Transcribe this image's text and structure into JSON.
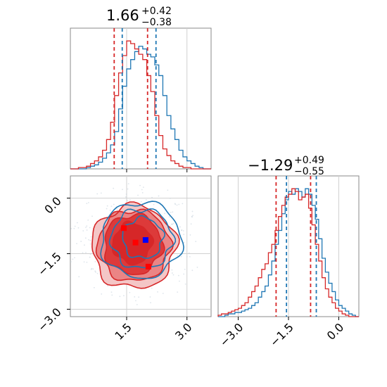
{
  "chart_data": [
    {
      "type": "histogram",
      "panel": "top-left",
      "title": {
        "median": "1.66",
        "upper": "+0.42",
        "lower": "−0.38"
      },
      "xlim": [
        0.1,
        3.6
      ],
      "grid": true,
      "bins_x": [
        0.1,
        0.2,
        0.3,
        0.4,
        0.5,
        0.6,
        0.7,
        0.8,
        0.9,
        1.0,
        1.1,
        1.2,
        1.3,
        1.4,
        1.5,
        1.6,
        1.7,
        1.8,
        1.9,
        2.0,
        2.1,
        2.2,
        2.3,
        2.4,
        2.5,
        2.6,
        2.7,
        2.8,
        2.9,
        3.0,
        3.1,
        3.2,
        3.3,
        3.4,
        3.5,
        3.6
      ],
      "series": [
        {
          "color": "#1f77b4",
          "values": [
            0,
            0,
            0,
            0,
            1,
            2,
            3,
            5,
            8,
            12,
            18,
            28,
            45,
            62,
            75,
            82,
            88,
            92,
            90,
            86,
            84,
            78,
            70,
            55,
            40,
            30,
            22,
            14,
            9,
            6,
            4,
            2,
            1,
            0,
            0
          ],
          "quantiles": [
            1.39,
            2.23
          ]
        },
        {
          "color": "#d62728",
          "values": [
            0,
            0,
            1,
            1,
            2,
            4,
            6,
            9,
            14,
            22,
            35,
            55,
            72,
            85,
            96,
            94,
            90,
            86,
            82,
            70,
            58,
            40,
            25,
            15,
            10,
            6,
            4,
            2,
            1,
            1,
            0,
            0,
            0,
            0,
            0
          ],
          "quantiles": [
            1.19,
            2.02
          ]
        }
      ]
    },
    {
      "type": "histogram",
      "panel": "bottom-right",
      "title": {
        "median": "−1.29",
        "upper": "+0.49",
        "lower": "−0.55"
      },
      "xlim": [
        -3.6,
        0.6
      ],
      "xticks": [
        "−3.0",
        "−1.5",
        "0.0"
      ],
      "xtick_values": [
        -3.0,
        -1.5,
        0.0
      ],
      "grid": true,
      "bins_x": [
        -3.6,
        -3.5,
        -3.4,
        -3.3,
        -3.2,
        -3.1,
        -3.0,
        -2.9,
        -2.8,
        -2.7,
        -2.6,
        -2.5,
        -2.4,
        -2.3,
        -2.2,
        -2.1,
        -2.0,
        -1.9,
        -1.8,
        -1.7,
        -1.6,
        -1.5,
        -1.4,
        -1.3,
        -1.2,
        -1.1,
        -1.0,
        -0.9,
        -0.8,
        -0.7,
        -0.6,
        -0.5,
        -0.4,
        -0.3,
        -0.2,
        -0.1,
        0.0,
        0.1,
        0.2,
        0.3,
        0.4,
        0.5,
        0.6
      ],
      "series": [
        {
          "color": "#1f77b4",
          "values": [
            0,
            0,
            1,
            2,
            2,
            3,
            3,
            4,
            5,
            6,
            8,
            10,
            14,
            18,
            22,
            30,
            40,
            52,
            62,
            74,
            84,
            90,
            88,
            92,
            90,
            86,
            92,
            88,
            80,
            70,
            56,
            42,
            32,
            24,
            18,
            12,
            8,
            6,
            4,
            2,
            1,
            0
          ],
          "quantiles": [
            -1.56,
            -0.67
          ]
        },
        {
          "color": "#d62728",
          "values": [
            1,
            2,
            2,
            3,
            4,
            5,
            6,
            8,
            10,
            14,
            18,
            22,
            28,
            34,
            38,
            46,
            52,
            62,
            72,
            80,
            86,
            88,
            92,
            90,
            84,
            86,
            88,
            78,
            66,
            52,
            40,
            28,
            20,
            14,
            10,
            6,
            4,
            2,
            1,
            0,
            0,
            0
          ],
          "quantiles": [
            -1.87,
            -0.84
          ]
        }
      ]
    },
    {
      "type": "contour",
      "panel": "bottom-left",
      "xlim": [
        0.1,
        3.6
      ],
      "ylim": [
        -3.2,
        0.6
      ],
      "xticks": [
        "1.5",
        "3.0"
      ],
      "xtick_values": [
        1.5,
        3.0
      ],
      "yticks": [
        "0.0",
        "−1.5",
        "−3.0"
      ],
      "ytick_values": [
        0.0,
        -1.5,
        -3.0
      ],
      "grid": true,
      "red_fill_colors": [
        "#f4c6c6",
        "#eb8585",
        "#dd3a3a",
        "#d62728"
      ],
      "blue_line_color": "#1f77b4",
      "red_line_color": "#d62728",
      "markers": [
        {
          "x": 1.97,
          "y": -1.13,
          "color": "#0000ff"
        },
        {
          "x": 1.43,
          "y": -0.81,
          "color": "#ff0000"
        },
        {
          "x": 1.72,
          "y": -1.2,
          "color": "#ff0000"
        },
        {
          "x": 2.04,
          "y": -1.85,
          "color": "#ff0000"
        }
      ]
    }
  ]
}
